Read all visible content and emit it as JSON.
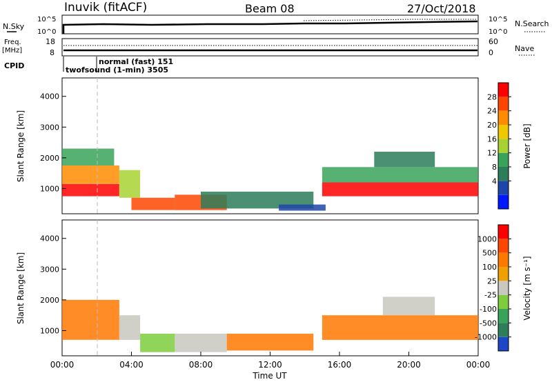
{
  "header": {
    "station": "Inuvik (fitACF)",
    "beam": "Beam 08",
    "date": "27/Oct/2018"
  },
  "top_panels": {
    "nsky_label": "N.Sky",
    "nsky_ticks": [
      "10^5",
      "10^0"
    ],
    "nsearch_label": "N.Search",
    "nsearch_ticks": [
      "10^5",
      "10^0"
    ],
    "freq_label_1": "Freq.",
    "freq_label_2": "[MHz]",
    "freq_ticks": [
      "18",
      "8"
    ],
    "nave_label": "Nave",
    "nave_ticks": [
      "60",
      "0"
    ],
    "cpid_label": "CPID",
    "cpid_mode_1": "normal (fast) 151",
    "cpid_mode_2": "twofsound (1-min) 3505"
  },
  "chart_data": [
    {
      "type": "heatmap",
      "name": "power-panel",
      "ylabel": "Slant Range [km]",
      "xlabel": "",
      "ylim": [
        180,
        4600
      ],
      "xlim": [
        0,
        24
      ],
      "yticks": [
        "4000",
        "3000",
        "2000",
        "1000"
      ],
      "ytick_values": [
        4000,
        3000,
        2000,
        1000
      ],
      "colorbar": {
        "label": "Power [dB]",
        "ticks": [
          "28",
          "24",
          "20",
          "16",
          "12",
          "8",
          "4"
        ],
        "colors": [
          "#0018ff",
          "#1e46a8",
          "#2d7d5a",
          "#3aa35a",
          "#a8d232",
          "#f0c800",
          "#ff8c00",
          "#ff4600",
          "#ff0000"
        ]
      },
      "echo_regions": [
        {
          "t0": 0.0,
          "t1": 3.3,
          "r0": 750,
          "r1": 1150,
          "level": 8
        },
        {
          "t0": 0.0,
          "t1": 3.3,
          "r0": 1150,
          "r1": 1750,
          "level": 6
        },
        {
          "t0": 0.0,
          "t1": 3.0,
          "r0": 1750,
          "r1": 2300,
          "level": 3
        },
        {
          "t0": 3.3,
          "t1": 4.5,
          "r0": 700,
          "r1": 1600,
          "level": 4
        },
        {
          "t0": 4.0,
          "t1": 6.5,
          "r0": 300,
          "r1": 700,
          "level": 7
        },
        {
          "t0": 6.5,
          "t1": 9.5,
          "r0": 300,
          "r1": 800,
          "level": 7
        },
        {
          "t0": 8.0,
          "t1": 14.5,
          "r0": 350,
          "r1": 900,
          "level": 2
        },
        {
          "t0": 12.5,
          "t1": 15.2,
          "r0": 280,
          "r1": 480,
          "level": 1
        },
        {
          "t0": 15.0,
          "t1": 24.0,
          "r0": 750,
          "r1": 1200,
          "level": 8
        },
        {
          "t0": 15.0,
          "t1": 24.0,
          "r0": 1200,
          "r1": 1700,
          "level": 3
        },
        {
          "t0": 18.0,
          "t1": 21.5,
          "r0": 1700,
          "r1": 2200,
          "level": 2
        }
      ]
    },
    {
      "type": "heatmap",
      "name": "velocity-panel",
      "ylabel": "Slant Range [km]",
      "xlabel": "Time UT",
      "ylim": [
        180,
        4600
      ],
      "xlim": [
        0,
        24
      ],
      "yticks": [
        "4000",
        "3000",
        "2000",
        "1000"
      ],
      "ytick_values": [
        4000,
        3000,
        2000,
        1000
      ],
      "xticks": [
        "00:00",
        "04:00",
        "08:00",
        "12:00",
        "16:00",
        "20:00",
        "00:00"
      ],
      "xtick_values": [
        0,
        4,
        8,
        12,
        16,
        20,
        24
      ],
      "colorbar": {
        "label": "Velocity [m s⁻¹]",
        "ticks": [
          "1000",
          "500",
          "100",
          "25",
          "-25",
          "-100",
          "-500",
          "-1000"
        ],
        "colors": [
          "#1e46c8",
          "#2d7d5a",
          "#3aa35a",
          "#7dcd3c",
          "#c8c8c0",
          "#f0a000",
          "#ff7800",
          "#ff4600",
          "#ff0000"
        ]
      },
      "echo_regions": [
        {
          "t0": 0.0,
          "t1": 3.3,
          "r0": 700,
          "r1": 2000,
          "level": 6
        },
        {
          "t0": 3.3,
          "t1": 4.5,
          "r0": 700,
          "r1": 1500,
          "level": 4
        },
        {
          "t0": 4.5,
          "t1": 6.5,
          "r0": 300,
          "r1": 900,
          "level": 3
        },
        {
          "t0": 6.5,
          "t1": 9.5,
          "r0": 300,
          "r1": 900,
          "level": 4
        },
        {
          "t0": 9.5,
          "t1": 14.5,
          "r0": 350,
          "r1": 900,
          "level": 6
        },
        {
          "t0": 15.0,
          "t1": 24.0,
          "r0": 700,
          "r1": 1500,
          "level": 6
        },
        {
          "t0": 18.5,
          "t1": 21.5,
          "r0": 1500,
          "r1": 2100,
          "level": 4
        }
      ]
    }
  ]
}
